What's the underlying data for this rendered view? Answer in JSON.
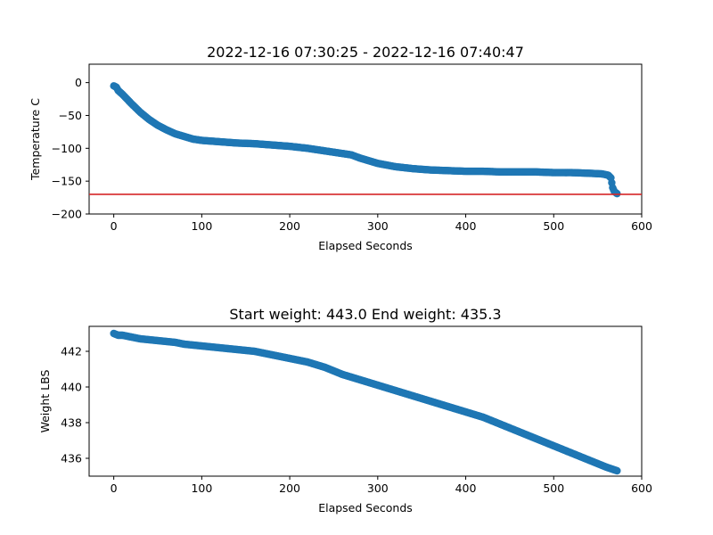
{
  "figure": {
    "colors": {
      "marker": "#1f77b4",
      "hline": "#d62728"
    }
  },
  "chart_data": [
    {
      "type": "scatter",
      "title": "2022-12-16 07:30:25 - 2022-12-16 07:40:47",
      "xlabel": "Elapsed Seconds",
      "ylabel": "Temperature C",
      "xlim": [
        -28,
        600
      ],
      "ylim": [
        -200,
        28
      ],
      "xticks": [
        0,
        100,
        200,
        300,
        400,
        500,
        600
      ],
      "yticks": [
        0,
        -50,
        -100,
        -150,
        -200
      ],
      "ytick_labels": [
        "0",
        "−50",
        "−100",
        "−150",
        "−200"
      ],
      "reference_line": {
        "y": -170,
        "color": "#d62728"
      },
      "series": [
        {
          "marker_color": "#1f77b4",
          "x": [
            0,
            3,
            5,
            10,
            15,
            20,
            30,
            40,
            50,
            60,
            70,
            80,
            90,
            100,
            120,
            140,
            160,
            180,
            200,
            220,
            240,
            260,
            270,
            280,
            300,
            320,
            340,
            360,
            380,
            400,
            420,
            440,
            460,
            480,
            500,
            520,
            540,
            555,
            562,
            565,
            567,
            569,
            572
          ],
          "y": [
            -5,
            -7,
            -12,
            -18,
            -25,
            -32,
            -45,
            -56,
            -65,
            -72,
            -78,
            -82,
            -86,
            -88,
            -90,
            -92,
            -93,
            -95,
            -97,
            -100,
            -104,
            -108,
            -110,
            -115,
            -123,
            -128,
            -131,
            -133,
            -134,
            -135,
            -135,
            -136,
            -136,
            -136,
            -137,
            -137,
            -138,
            -139,
            -141,
            -145,
            -160,
            -166,
            -169
          ]
        }
      ]
    },
    {
      "type": "scatter",
      "title": "Start weight: 443.0 End weight: 435.3",
      "xlabel": "Elapsed Seconds",
      "ylabel": "Weight LBS",
      "xlim": [
        -28,
        600
      ],
      "ylim": [
        435.0,
        443.4
      ],
      "xticks": [
        0,
        100,
        200,
        300,
        400,
        500,
        600
      ],
      "yticks": [
        436,
        438,
        440,
        442
      ],
      "series": [
        {
          "marker_color": "#1f77b4",
          "x": [
            0,
            5,
            10,
            20,
            30,
            50,
            70,
            80,
            100,
            120,
            140,
            160,
            180,
            200,
            220,
            240,
            260,
            280,
            300,
            320,
            340,
            360,
            380,
            400,
            420,
            440,
            460,
            480,
            500,
            520,
            540,
            560,
            572
          ],
          "y": [
            443.0,
            442.9,
            442.9,
            442.8,
            442.7,
            442.6,
            442.5,
            442.4,
            442.3,
            442.2,
            442.1,
            442.0,
            441.8,
            441.6,
            441.4,
            441.1,
            440.7,
            440.4,
            440.1,
            439.8,
            439.5,
            439.2,
            438.9,
            438.6,
            438.3,
            437.9,
            437.5,
            437.1,
            436.7,
            436.3,
            435.9,
            435.5,
            435.3
          ]
        }
      ]
    }
  ]
}
